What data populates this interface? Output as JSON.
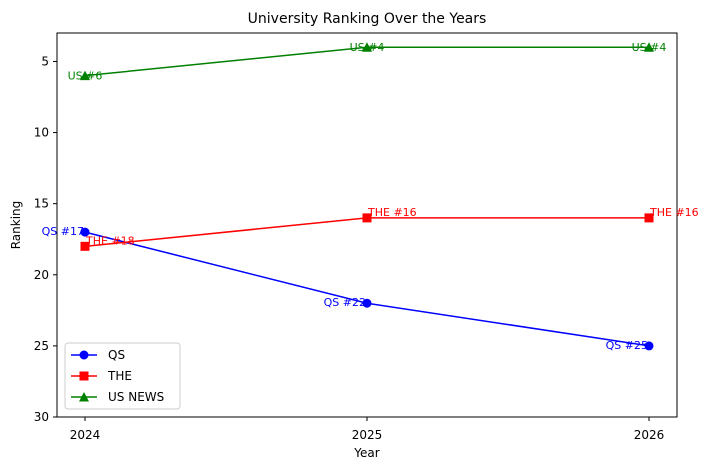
{
  "chart_data": {
    "type": "line",
    "title": "University Ranking Over the Years",
    "xlabel": "Year",
    "ylabel": "Ranking",
    "categories": [
      "2024",
      "2025",
      "2026"
    ],
    "y_inverted": true,
    "ylim": [
      3,
      30
    ],
    "yticks": [
      5,
      10,
      15,
      20,
      25,
      30
    ],
    "grid": false,
    "legend_position": "lower-left",
    "series": [
      {
        "name": "QS",
        "color": "#0000ff",
        "marker": "circle",
        "values": [
          17,
          22,
          25
        ],
        "labels": [
          "QS #17",
          "QS #22",
          "QS #25"
        ]
      },
      {
        "name": "THE",
        "color": "#ff0000",
        "marker": "square",
        "values": [
          18,
          16,
          16
        ],
        "labels": [
          "THE #18",
          "THE #16",
          "THE #16"
        ]
      },
      {
        "name": "US NEWS",
        "color": "#008000",
        "marker": "triangle",
        "values": [
          6,
          4,
          4
        ],
        "labels": [
          "US #6",
          "US #4",
          "US #4"
        ]
      }
    ]
  }
}
